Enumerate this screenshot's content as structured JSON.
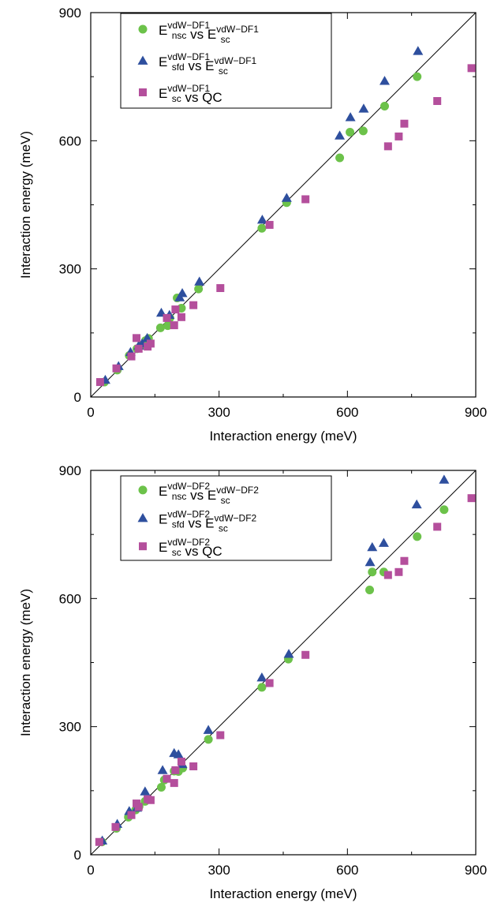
{
  "colors": {
    "green": "#6cc24a",
    "blue": "#2e4f9e",
    "pink": "#b44f9c"
  },
  "chart_data": [
    {
      "type": "scatter",
      "xlabel": "Interaction energy (meV)",
      "ylabel": "Interaction energy (meV)",
      "xlim": [
        0,
        900
      ],
      "ylim": [
        0,
        900
      ],
      "xticks": [
        "0",
        "300",
        "600",
        "900"
      ],
      "yticks": [
        "0",
        "300",
        "600",
        "900"
      ],
      "diagonal": true,
      "legend_position": "top-left",
      "series": [
        {
          "name": "E_nsc^vdW-DF1 vs E_sc^vdW-DF1",
          "legend": [
            "E",
            "vdW−DF1",
            "nsc",
            " vs E",
            "vdW−DF1",
            "sc",
            ""
          ],
          "marker": "circle",
          "color": "green",
          "points": [
            [
              32,
              35
            ],
            [
              62,
              63
            ],
            [
              90,
              97
            ],
            [
              108,
              113
            ],
            [
              117,
              120
            ],
            [
              128,
              132
            ],
            [
              135,
              137
            ],
            [
              163,
              162
            ],
            [
              180,
              167
            ],
            [
              185,
              185
            ],
            [
              202,
              232
            ],
            [
              212,
              208
            ],
            [
              252,
              253
            ],
            [
              400,
              395
            ],
            [
              458,
              455
            ],
            [
              582,
              560
            ],
            [
              606,
              620
            ],
            [
              637,
              623
            ],
            [
              687,
              681
            ],
            [
              763,
              750
            ]
          ]
        },
        {
          "name": "E_sfd^vdW-DF1 vs E_sc^vdW-DF1",
          "legend": [
            "E",
            "vdW−DF1",
            "sfd",
            " vs E",
            "vdW−DF1",
            "sc",
            ""
          ],
          "marker": "triangle",
          "color": "blue",
          "points": [
            [
              34,
              40
            ],
            [
              65,
              72
            ],
            [
              93,
              105
            ],
            [
              112,
              120
            ],
            [
              120,
              125
            ],
            [
              132,
              138
            ],
            [
              165,
              197
            ],
            [
              184,
              192
            ],
            [
              208,
              233
            ],
            [
              214,
              243
            ],
            [
              254,
              270
            ],
            [
              401,
              415
            ],
            [
              458,
              466
            ],
            [
              582,
              612
            ],
            [
              607,
              655
            ],
            [
              638,
              675
            ],
            [
              687,
              740
            ],
            [
              765,
              810
            ]
          ]
        },
        {
          "name": "E_sc^vdW-DF1 vs QC",
          "legend": [
            "E",
            "vdW−DF1",
            "sc",
            " vs QC",
            "",
            "",
            ""
          ],
          "marker": "square",
          "color": "pink",
          "points": [
            [
              22,
              35
            ],
            [
              60,
              67
            ],
            [
              95,
              95
            ],
            [
              107,
              138
            ],
            [
              112,
              113
            ],
            [
              133,
              118
            ],
            [
              140,
              125
            ],
            [
              178,
              185
            ],
            [
              195,
              168
            ],
            [
              198,
              205
            ],
            [
              212,
              187
            ],
            [
              240,
              215
            ],
            [
              303,
              255
            ],
            [
              418,
              403
            ],
            [
              502,
              463
            ],
            [
              695,
              587
            ],
            [
              720,
              610
            ],
            [
              733,
              640
            ],
            [
              810,
              693
            ],
            [
              890,
              770
            ]
          ]
        }
      ]
    },
    {
      "type": "scatter",
      "xlabel": "Interaction energy (meV)",
      "ylabel": "Interaction energy (meV)",
      "xlim": [
        0,
        900
      ],
      "ylim": [
        0,
        900
      ],
      "xticks": [
        "0",
        "300",
        "600",
        "900"
      ],
      "yticks": [
        "0",
        "300",
        "600",
        "900"
      ],
      "diagonal": true,
      "legend_position": "top-left",
      "series": [
        {
          "name": "E_nsc^vdW-DF2 vs E_sc^vdW-DF2",
          "legend": [
            "E",
            "vdW−DF2",
            "nsc",
            " vs E",
            "vdW−DF2",
            "sc",
            ""
          ],
          "marker": "circle",
          "color": "green",
          "points": [
            [
              26,
              30
            ],
            [
              60,
              62
            ],
            [
              88,
              88
            ],
            [
              105,
              105
            ],
            [
              113,
              113
            ],
            [
              127,
              125
            ],
            [
              165,
              158
            ],
            [
              172,
              175
            ],
            [
              195,
              196
            ],
            [
              205,
              195
            ],
            [
              215,
              203
            ],
            [
              275,
              270
            ],
            [
              400,
              392
            ],
            [
              462,
              458
            ],
            [
              652,
              620
            ],
            [
              658,
              662
            ],
            [
              685,
              662
            ],
            [
              763,
              745
            ],
            [
              826,
              808
            ]
          ]
        },
        {
          "name": "E_sfd^vdW-DF2 vs E_sc^vdW-DF2",
          "legend": [
            "E",
            "vdW−DF2",
            "sfd",
            " vs E",
            "vdW−DF2",
            "sc",
            ""
          ],
          "marker": "triangle",
          "color": "blue",
          "points": [
            [
              27,
              33
            ],
            [
              62,
              72
            ],
            [
              90,
              102
            ],
            [
              108,
              110
            ],
            [
              127,
              148
            ],
            [
              168,
              198
            ],
            [
              195,
              238
            ],
            [
              205,
              235
            ],
            [
              214,
              212
            ],
            [
              275,
              292
            ],
            [
              400,
              415
            ],
            [
              463,
              470
            ],
            [
              653,
              685
            ],
            [
              658,
              720
            ],
            [
              685,
              730
            ],
            [
              762,
              820
            ],
            [
              826,
              878
            ]
          ]
        },
        {
          "name": "E_sc^vdW-DF2 vs QC",
          "legend": [
            "E",
            "vdW−DF2",
            "sc",
            " vs QC",
            "",
            "",
            ""
          ],
          "marker": "square",
          "color": "pink",
          "points": [
            [
              20,
              30
            ],
            [
              58,
              65
            ],
            [
              95,
              93
            ],
            [
              107,
              120
            ],
            [
              112,
              112
            ],
            [
              133,
              130
            ],
            [
              140,
              128
            ],
            [
              178,
              178
            ],
            [
              195,
              168
            ],
            [
              198,
              198
            ],
            [
              212,
              218
            ],
            [
              240,
              207
            ],
            [
              303,
              280
            ],
            [
              418,
              402
            ],
            [
              502,
              468
            ],
            [
              695,
              655
            ],
            [
              720,
              662
            ],
            [
              733,
              688
            ],
            [
              810,
              768
            ],
            [
              890,
              835
            ]
          ]
        }
      ]
    }
  ]
}
